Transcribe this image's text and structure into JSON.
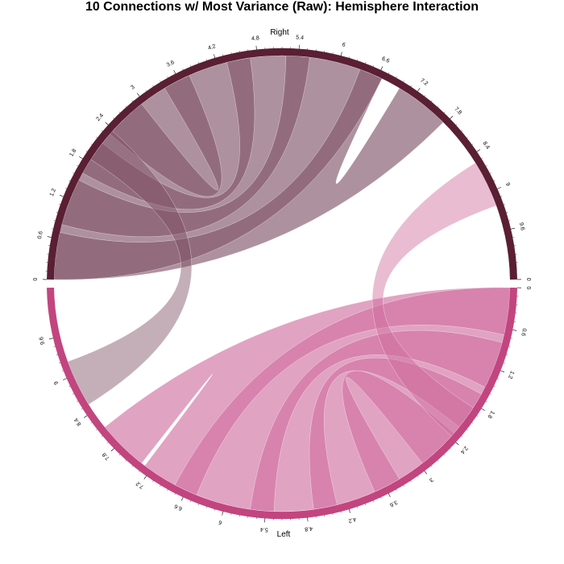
{
  "title": "10 Connections w/ Most Variance (Raw): Hemisphere Interaction",
  "colors": {
    "right_sector": "#5a1f33",
    "left_sector": "#c2457f",
    "right_ribbon": "#7c4e62",
    "left_ribbon": "#cf6a9c"
  },
  "chart_data": {
    "type": "chord",
    "sectors": [
      {
        "name": "Right",
        "ticks": [
          "0",
          "0.6",
          "1.2",
          "1.8",
          "2.4",
          "3",
          "3.6",
          "4.2",
          "4.8",
          "5.4",
          "6",
          "6.6",
          "7.2",
          "7.8",
          "8.4",
          "9",
          "9.6",
          "0"
        ]
      },
      {
        "name": "Left",
        "ticks": [
          "0",
          "0.6",
          "1.2",
          "1.8",
          "2.4",
          "3",
          "3.6",
          "4.2",
          "4.8",
          "5.4",
          "6",
          "6.6",
          "7.2",
          "7.8",
          "8.4",
          "9",
          "9.6"
        ]
      }
    ],
    "ribbons": [
      {
        "from": "Right",
        "to": "Right",
        "count": 5
      },
      {
        "from": "Left",
        "to": "Left",
        "count": 5
      },
      {
        "from": "Right",
        "to": "Left",
        "count": 1
      }
    ]
  }
}
